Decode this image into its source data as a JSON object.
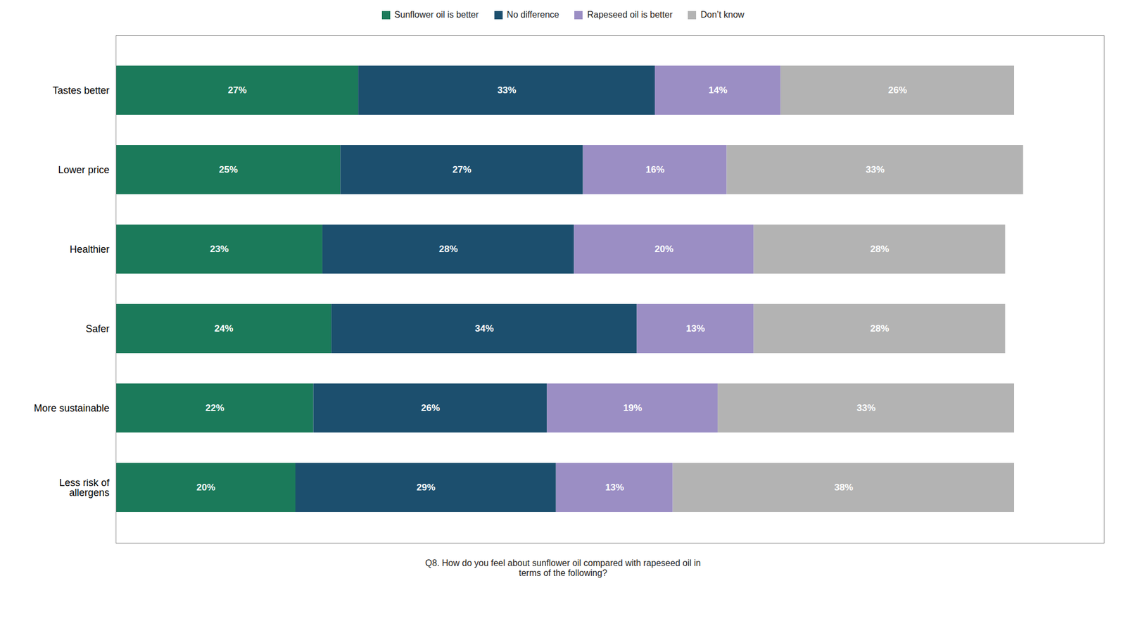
{
  "chart_data": {
    "type": "bar",
    "orientation": "horizontal",
    "stacked": true,
    "data_labels": true,
    "tick_labels": "y",
    "grid": false,
    "legend": "top",
    "subtitle": "Q8. How do you feel about sunflower oil compared with rapeseed oil in\nterms of the following?",
    "categories": [
      "Tastes better",
      "Lower price",
      "Healthier",
      "Safer",
      "More sustainable",
      "Less risk of\nallergens"
    ],
    "xlim": [
      0,
      110
    ],
    "series": [
      {
        "name": "Sunflower oil is better",
        "color": "#1b7a5a",
        "values": [
          27,
          25,
          23,
          24,
          22,
          20
        ],
        "value_labels": [
          "27%",
          "25%",
          "23%",
          "24%",
          "22%",
          "20%"
        ]
      },
      {
        "name": "No difference",
        "color": "#1c4f6e",
        "values": [
          33,
          27,
          28,
          34,
          26,
          29
        ],
        "value_labels": [
          "33%",
          "27%",
          "28%",
          "34%",
          "26%",
          "29%"
        ]
      },
      {
        "name": "Rapeseed oil is better",
        "color": "#9b8ec4",
        "values": [
          14,
          16,
          20,
          13,
          19,
          13
        ],
        "value_labels": [
          "14%",
          "16%",
          "20%",
          "13%",
          "19%",
          "13%"
        ]
      },
      {
        "name": "Don’t know",
        "color": "#b3b3b3",
        "values": [
          26,
          33,
          28,
          28,
          33,
          38
        ],
        "value_labels": [
          "26%",
          "33%",
          "28%",
          "28%",
          "33%",
          "38%"
        ]
      }
    ]
  }
}
